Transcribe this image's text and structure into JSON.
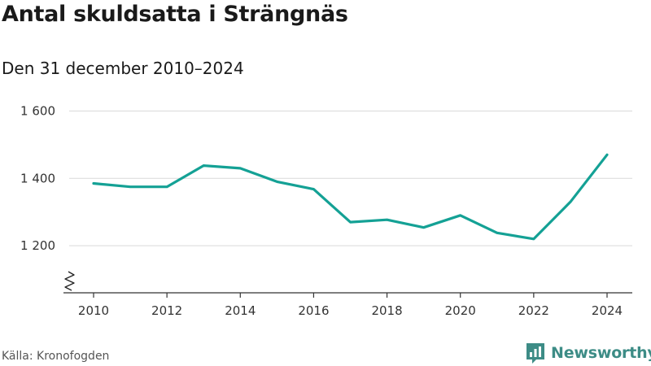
{
  "header": {
    "title": "Antal skuldsatta i Strängnäs",
    "subtitle": "Den 31 december 2010–2024"
  },
  "footer": {
    "source": "Källa: Kronofogden",
    "brand": "Newsworthy",
    "brand_color": "#3d8c86"
  },
  "chart_data": {
    "type": "line",
    "title": "Antal skuldsatta i Strängnäs",
    "subtitle": "Den 31 december 2010–2024",
    "xlabel": "",
    "ylabel": "",
    "x": [
      2010,
      2011,
      2012,
      2013,
      2014,
      2015,
      2016,
      2017,
      2018,
      2019,
      2020,
      2021,
      2022,
      2023,
      2024
    ],
    "series": [
      {
        "values": [
          1385,
          1375,
          1375,
          1438,
          1430,
          1390,
          1368,
          1270,
          1277,
          1254,
          1290,
          1238,
          1220,
          1330,
          1470
        ],
        "color": "#14a195"
      }
    ],
    "xticks": [
      2010,
      2012,
      2014,
      2016,
      2018,
      2020,
      2022,
      2024
    ],
    "xtick_labels": [
      "2010",
      "2012",
      "2014",
      "2016",
      "2018",
      "2020",
      "2022",
      "2024"
    ],
    "yticks": [
      1200,
      1400,
      1600
    ],
    "ytick_labels": [
      "1 200",
      "1 400",
      "1 600"
    ],
    "ylim": [
      1060,
      1640
    ],
    "xlim": [
      2010,
      2024
    ],
    "grid": "horizontal",
    "axis_break": true
  }
}
